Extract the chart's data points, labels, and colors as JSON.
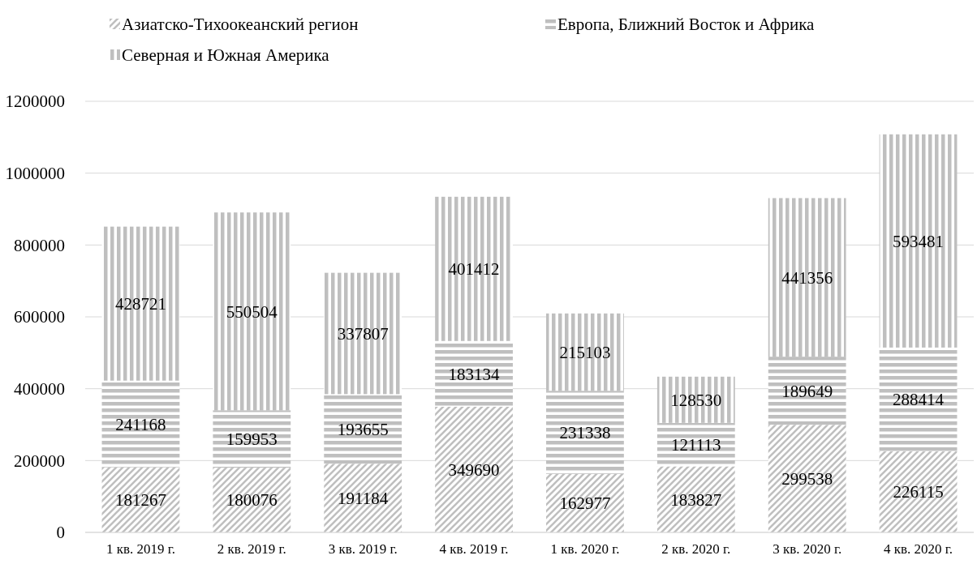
{
  "chart_data": {
    "type": "bar",
    "stacked": true,
    "categories": [
      "1 кв. 2019 г.",
      "2 кв. 2019 г.",
      "3 кв. 2019 г.",
      "4 кв. 2019 г.",
      "1 кв. 2020 г.",
      "2 кв. 2020 г.",
      "3 кв. 2020 г.",
      "4 кв. 2020 г."
    ],
    "series": [
      {
        "name": "Азиатско-Тихоокеанский регион",
        "color": "#bfbfbf",
        "values": [
          181267,
          180076,
          191184,
          349690,
          162977,
          183827,
          299538,
          226115
        ]
      },
      {
        "name": "Европа, Ближний Восток и Африка",
        "color": "#bfbfbf",
        "values": [
          241168,
          159953,
          193655,
          183134,
          231338,
          121113,
          189649,
          288414
        ]
      },
      {
        "name": "Северная и Южная Америка",
        "color": "#bfbfbf",
        "values": [
          428721,
          550504,
          337807,
          401412,
          215103,
          128530,
          441356,
          593481
        ]
      }
    ],
    "ylim": [
      0,
      1200000
    ],
    "yticks": [
      0,
      200000,
      400000,
      600000,
      800000,
      1000000,
      1200000
    ],
    "grid": "y",
    "legend": "top left",
    "data_labels": true
  }
}
